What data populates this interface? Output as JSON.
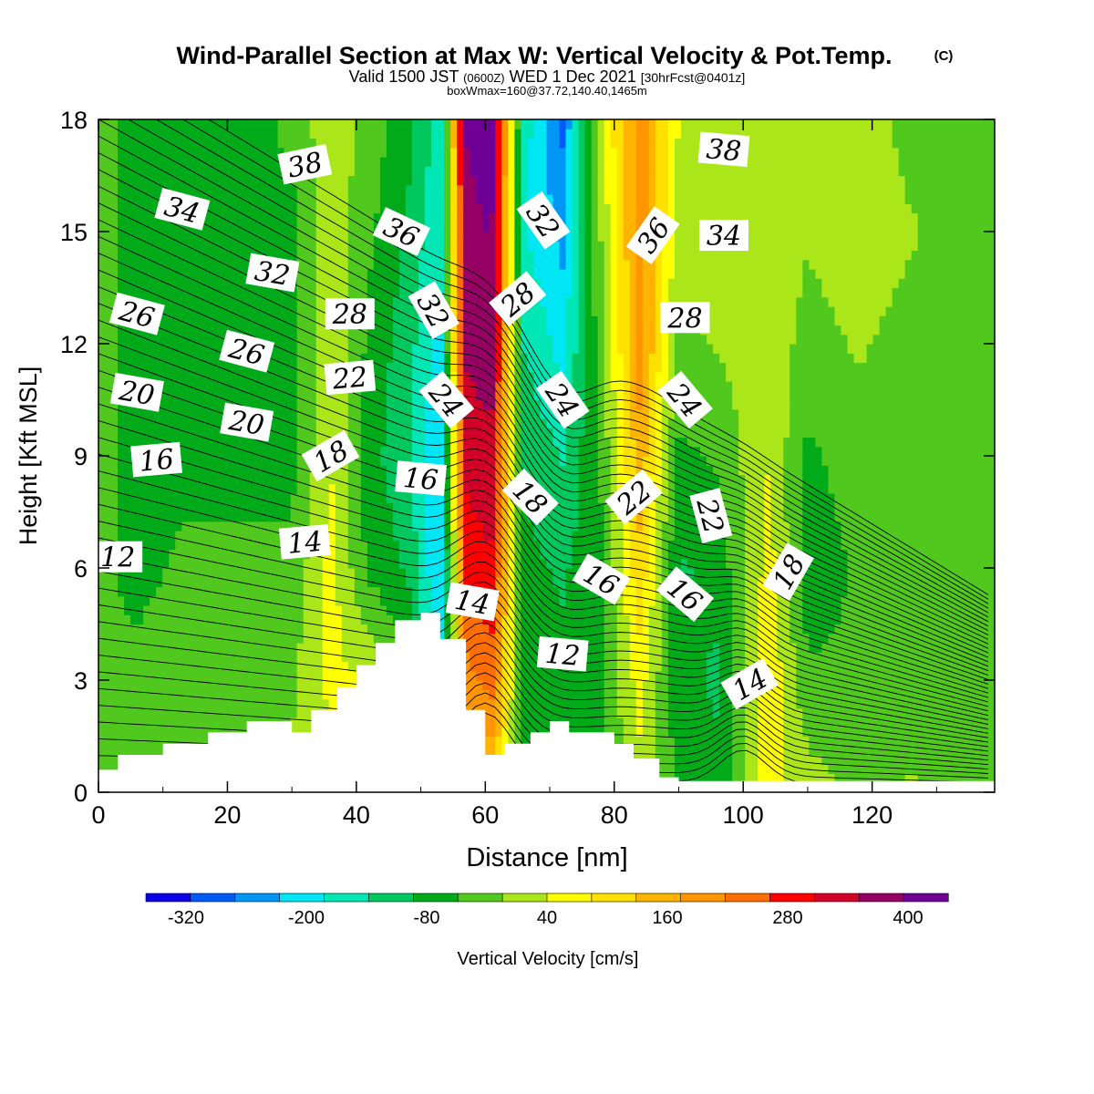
{
  "chart_data": {
    "type": "heatmap",
    "title": "Wind-Parallel Section at Max W: Vertical Velocity & Pot.Temp.",
    "copyright": "(C)",
    "subtitle_prefix": "Valid 1500 JST",
    "subtitle_utc": "(0600Z)",
    "subtitle_date": "WED 1 Dec 2021",
    "subtitle_fcst": "[30hrFcst@0401z]",
    "subtitle2": "boxWmax=160@37.72,140.40,1465m",
    "xlabel": "Distance [nm]",
    "ylabel": "Height [Kft MSL]",
    "xlim": [
      0,
      139
    ],
    "ylim": [
      0,
      18
    ],
    "x_ticks": [
      0,
      20,
      40,
      60,
      80,
      100,
      120
    ],
    "y_ticks": [
      0,
      3,
      6,
      9,
      12,
      15,
      18
    ],
    "colorbar_label": "Vertical Velocity [cm/s]",
    "colorbar_colors": [
      "#0b00e6",
      "#005af5",
      "#0096f5",
      "#00e6f5",
      "#00e6b4",
      "#00c85f",
      "#00aa19",
      "#50c81e",
      "#aae619",
      "#ffff00",
      "#ffe100",
      "#ffb400",
      "#ff9600",
      "#ff6e00",
      "#ff0000",
      "#d20028",
      "#960064",
      "#6e0096"
    ],
    "colorbar_tick_labels": [
      "-320",
      "-200",
      "-80",
      "40",
      "160",
      "280",
      "400"
    ],
    "colorbar_tick_values": [
      -320,
      -200,
      -80,
      40,
      160,
      280,
      400
    ],
    "colorbar_range": [
      -360,
      440
    ],
    "w_field_columns": [
      {
        "x": 0,
        "w": [
          -40,
          -40,
          -40,
          -40,
          -40,
          -40,
          -40
        ]
      },
      {
        "x": 6,
        "w": [
          -10,
          -40,
          -60,
          -60,
          -60,
          -60,
          -60
        ]
      },
      {
        "x": 14,
        "w": [
          -10,
          -20,
          -40,
          -60,
          -70,
          -70,
          -60
        ]
      },
      {
        "x": 24,
        "w": [
          0,
          -20,
          -40,
          -60,
          -60,
          -60,
          -60
        ]
      },
      {
        "x": 30,
        "w": [
          0,
          -10,
          -40,
          -60,
          -60,
          -60,
          -40
        ]
      },
      {
        "x": 36,
        "w": [
          30,
          50,
          60,
          40,
          30,
          20,
          30
        ]
      },
      {
        "x": 42,
        "w": [
          30,
          40,
          -60,
          -80,
          -60,
          -40,
          -20
        ]
      },
      {
        "x": 48,
        "w": [
          0,
          -40,
          -100,
          -120,
          -120,
          -100,
          -80
        ]
      },
      {
        "x": 53,
        "w": [
          -160,
          -200,
          -240,
          -240,
          -200,
          -180,
          -160
        ]
      },
      {
        "x": 57,
        "w": [
          120,
          200,
          280,
          320,
          360,
          380,
          400
        ]
      },
      {
        "x": 61,
        "w": [
          120,
          240,
          300,
          340,
          380,
          400,
          420
        ]
      },
      {
        "x": 66,
        "w": [
          -60,
          -80,
          -80,
          -100,
          -140,
          -180,
          -160
        ]
      },
      {
        "x": 72,
        "w": [
          -60,
          -80,
          -100,
          -140,
          -200,
          -240,
          -280
        ]
      },
      {
        "x": 78,
        "w": [
          -40,
          -60,
          -60,
          -40,
          -20,
          0,
          40
        ]
      },
      {
        "x": 84,
        "w": [
          20,
          60,
          120,
          160,
          200,
          200,
          200
        ]
      },
      {
        "x": 90,
        "w": [
          -60,
          -80,
          -100,
          -60,
          -20,
          20,
          40
        ]
      },
      {
        "x": 96,
        "w": [
          -80,
          -100,
          -80,
          -40,
          0,
          20,
          40
        ]
      },
      {
        "x": 104,
        "w": [
          60,
          80,
          60,
          40,
          20,
          20,
          40
        ]
      },
      {
        "x": 110,
        "w": [
          20,
          -40,
          -80,
          -60,
          -20,
          0,
          20
        ]
      },
      {
        "x": 118,
        "w": [
          -20,
          -40,
          -40,
          -20,
          0,
          20,
          20
        ]
      },
      {
        "x": 126,
        "w": [
          0,
          -20,
          -40,
          -40,
          -20,
          0,
          -20
        ]
      },
      {
        "x": 139,
        "w": [
          -20,
          -20,
          -40,
          -40,
          -40,
          -40,
          -40
        ]
      }
    ],
    "w_field_heights": [
      0,
      3,
      6,
      9,
      12,
      15,
      18
    ],
    "terrain": {
      "x": [
        0,
        3,
        3,
        10,
        10,
        17,
        17,
        23,
        23,
        30,
        30,
        33,
        33,
        37,
        37,
        40,
        40,
        43,
        43,
        46,
        46,
        50,
        50,
        53,
        53,
        57,
        57,
        60,
        60,
        63,
        63,
        67,
        67,
        70,
        70,
        73,
        73,
        80,
        80,
        83,
        83,
        87,
        87,
        90,
        90,
        139
      ],
      "h": [
        0.6,
        0.6,
        1.0,
        1.0,
        1.3,
        1.3,
        1.6,
        1.6,
        1.9,
        1.9,
        1.6,
        1.6,
        2.2,
        2.2,
        2.8,
        2.8,
        3.4,
        3.4,
        4.0,
        4.0,
        4.6,
        4.6,
        4.8,
        4.8,
        4.1,
        4.1,
        2.2,
        2.2,
        1.0,
        1.0,
        1.3,
        1.3,
        1.6,
        1.6,
        1.9,
        1.9,
        1.6,
        1.6,
        1.3,
        1.3,
        0.9,
        0.9,
        0.4,
        0.4,
        0.3,
        0.3
      ]
    },
    "contour_labels": [
      {
        "text": "38",
        "x": 32,
        "y": 16.8,
        "angle": -12
      },
      {
        "text": "38",
        "x": 97,
        "y": 17.2,
        "angle": 5
      },
      {
        "text": "34",
        "x": 13,
        "y": 15.6,
        "angle": 15
      },
      {
        "text": "36",
        "x": 47,
        "y": 15.0,
        "angle": 25
      },
      {
        "text": "32",
        "x": 69,
        "y": 15.3,
        "angle": 55
      },
      {
        "text": "36",
        "x": 86,
        "y": 14.9,
        "angle": -55
      },
      {
        "text": "34",
        "x": 97,
        "y": 14.9,
        "angle": 0
      },
      {
        "text": "32",
        "x": 27,
        "y": 13.9,
        "angle": 10
      },
      {
        "text": "26",
        "x": 6,
        "y": 12.8,
        "angle": 15
      },
      {
        "text": "28",
        "x": 39,
        "y": 12.8,
        "angle": 0
      },
      {
        "text": "32",
        "x": 52,
        "y": 12.9,
        "angle": 60
      },
      {
        "text": "28",
        "x": 65,
        "y": 13.2,
        "angle": -40
      },
      {
        "text": "28",
        "x": 91,
        "y": 12.7,
        "angle": 0
      },
      {
        "text": "26",
        "x": 23,
        "y": 11.8,
        "angle": 15
      },
      {
        "text": "20",
        "x": 6,
        "y": 10.7,
        "angle": 10
      },
      {
        "text": "22",
        "x": 39,
        "y": 11.1,
        "angle": -5
      },
      {
        "text": "24",
        "x": 54,
        "y": 10.5,
        "angle": 50
      },
      {
        "text": "24",
        "x": 72,
        "y": 10.5,
        "angle": 55
      },
      {
        "text": "24",
        "x": 91,
        "y": 10.5,
        "angle": 50
      },
      {
        "text": "20",
        "x": 23,
        "y": 9.9,
        "angle": 10
      },
      {
        "text": "16",
        "x": 9,
        "y": 8.9,
        "angle": -5
      },
      {
        "text": "18",
        "x": 36,
        "y": 9.0,
        "angle": -30
      },
      {
        "text": "16",
        "x": 50,
        "y": 8.4,
        "angle": 5
      },
      {
        "text": "18",
        "x": 67,
        "y": 7.9,
        "angle": 45
      },
      {
        "text": "22",
        "x": 83,
        "y": 7.9,
        "angle": -40
      },
      {
        "text": "22",
        "x": 95,
        "y": 7.4,
        "angle": 75
      },
      {
        "text": "12",
        "x": 3,
        "y": 6.3,
        "angle": 0
      },
      {
        "text": "14",
        "x": 32,
        "y": 6.7,
        "angle": -5
      },
      {
        "text": "18",
        "x": 107,
        "y": 5.9,
        "angle": -60
      },
      {
        "text": "16",
        "x": 78,
        "y": 5.7,
        "angle": 30
      },
      {
        "text": "16",
        "x": 91,
        "y": 5.3,
        "angle": 40
      },
      {
        "text": "14",
        "x": 58,
        "y": 5.1,
        "angle": 10
      },
      {
        "text": "12",
        "x": 72,
        "y": 3.7,
        "angle": 5
      },
      {
        "text": "14",
        "x": 101,
        "y": 2.9,
        "angle": -30
      }
    ]
  }
}
